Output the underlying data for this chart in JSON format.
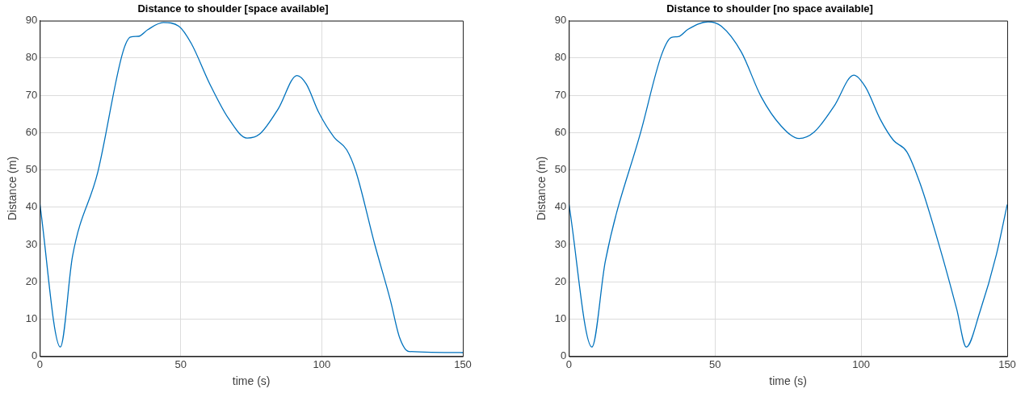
{
  "chart_data": [
    {
      "type": "line",
      "title": "Distance to shoulder [space available]",
      "xlabel": "time (s)",
      "ylabel": "Distance (m)",
      "color": "#0072bd",
      "grid": true,
      "x": [
        0,
        7.3,
        11.6,
        20.6,
        29.4,
        32.2,
        35,
        38.3,
        43.8,
        49.3,
        53.7,
        60.3,
        66.9,
        73.5,
        78,
        84.5,
        91.2,
        94.5,
        98.9,
        104.4,
        108.8,
        112.1,
        118.7,
        124.3,
        127.6,
        130.9,
        150
      ],
      "values": [
        41,
        2.5,
        26.8,
        49.5,
        81.4,
        85.6,
        85.8,
        87.6,
        89.5,
        88.5,
        83.9,
        73,
        63.8,
        58.5,
        59.6,
        66.3,
        75.3,
        73,
        65.4,
        58.7,
        55.4,
        49.5,
        30.2,
        15.1,
        5,
        1.3,
        1
      ],
      "xlim": [
        0,
        150
      ],
      "ylim": [
        0,
        90
      ],
      "xticks": [
        0,
        50,
        100,
        150
      ],
      "yticks": [
        0,
        10,
        20,
        30,
        40,
        50,
        60,
        70,
        80,
        90
      ]
    },
    {
      "type": "line",
      "title": "Distance to shoulder [no space available]",
      "xlabel": "time (s)",
      "ylabel": "Distance (m)",
      "color": "#0072bd",
      "grid": true,
      "x": [
        0,
        7.9,
        12.5,
        24.9,
        31.7,
        35.1,
        37.4,
        40.8,
        47.6,
        52.2,
        59,
        65.8,
        72.6,
        78.8,
        83.9,
        90.7,
        97.5,
        101.5,
        106.6,
        111.1,
        115.6,
        120.2,
        127,
        132.7,
        136,
        140.6,
        146.3,
        150
      ],
      "values": [
        41,
        2.5,
        25.6,
        61,
        80.8,
        85.5,
        85.7,
        87.7,
        89.7,
        88.5,
        81.6,
        69.6,
        61.8,
        58.4,
        60.1,
        67,
        75.4,
        72.2,
        63.5,
        57.9,
        54.9,
        46.3,
        29,
        12.7,
        2.5,
        11.8,
        27.3,
        40.7
      ],
      "xlim": [
        0,
        150
      ],
      "ylim": [
        0,
        90
      ],
      "xticks": [
        0,
        50,
        100,
        150
      ],
      "yticks": [
        0,
        10,
        20,
        30,
        40,
        50,
        60,
        70,
        80,
        90
      ]
    }
  ]
}
